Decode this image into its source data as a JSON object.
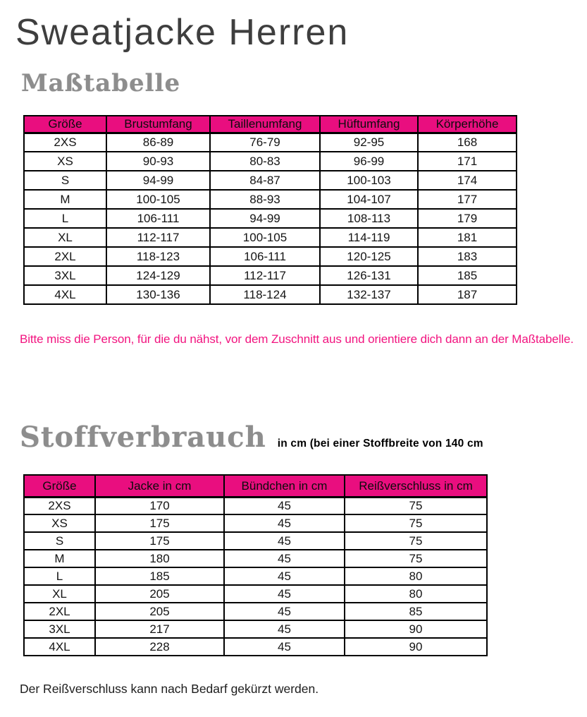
{
  "page": {
    "title": "Sweatjacke Herren"
  },
  "colors": {
    "accent_pink": "#E90E7F",
    "note_pink": "#F2137F",
    "heading_gray": "#8d8d8d",
    "title_gray": "#3e3e3e",
    "border_black": "#000000"
  },
  "size_table": {
    "heading": "Maßtabelle",
    "columns": [
      "Größe",
      "Brustumfang",
      "Taillenumfang",
      "Hüftumfang",
      "Körperhöhe"
    ],
    "rows": [
      [
        "2XS",
        "86-89",
        "76-79",
        "92-95",
        "168"
      ],
      [
        "XS",
        "90-93",
        "80-83",
        "96-99",
        "171"
      ],
      [
        "S",
        "94-99",
        "84-87",
        "100-103",
        "174"
      ],
      [
        "M",
        "100-105",
        "88-93",
        "104-107",
        "177"
      ],
      [
        "L",
        "106-111",
        "94-99",
        "108-113",
        "179"
      ],
      [
        "XL",
        "112-117",
        "100-105",
        "114-119",
        "181"
      ],
      [
        "2XL",
        "118-123",
        "106-111",
        "120-125",
        "183"
      ],
      [
        "3XL",
        "124-129",
        "112-117",
        "126-131",
        "185"
      ],
      [
        "4XL",
        "130-136",
        "118-124",
        "132-137",
        "187"
      ]
    ],
    "note": "Bitte miss die Person, für die du nähst, vor dem Zuschnitt aus und orientiere dich dann an der Maßtabelle."
  },
  "fabric_table": {
    "heading": "Stoffverbrauch",
    "subtitle": "in cm (bei einer Stoffbreite von 140 cm",
    "columns": [
      "Größe",
      "Jacke in cm",
      "Bündchen in cm",
      "Reißverschluss in cm"
    ],
    "rows": [
      [
        "2XS",
        "170",
        "45",
        "75"
      ],
      [
        "XS",
        "175",
        "45",
        "75"
      ],
      [
        "S",
        "175",
        "45",
        "75"
      ],
      [
        "M",
        "180",
        "45",
        "75"
      ],
      [
        "L",
        "185",
        "45",
        "80"
      ],
      [
        "XL",
        "205",
        "45",
        "80"
      ],
      [
        "2XL",
        "205",
        "45",
        "85"
      ],
      [
        "3XL",
        "217",
        "45",
        "90"
      ],
      [
        "4XL",
        "228",
        "45",
        "90"
      ]
    ],
    "note": "Der Reißverschluss kann nach Bedarf gekürzt werden."
  }
}
